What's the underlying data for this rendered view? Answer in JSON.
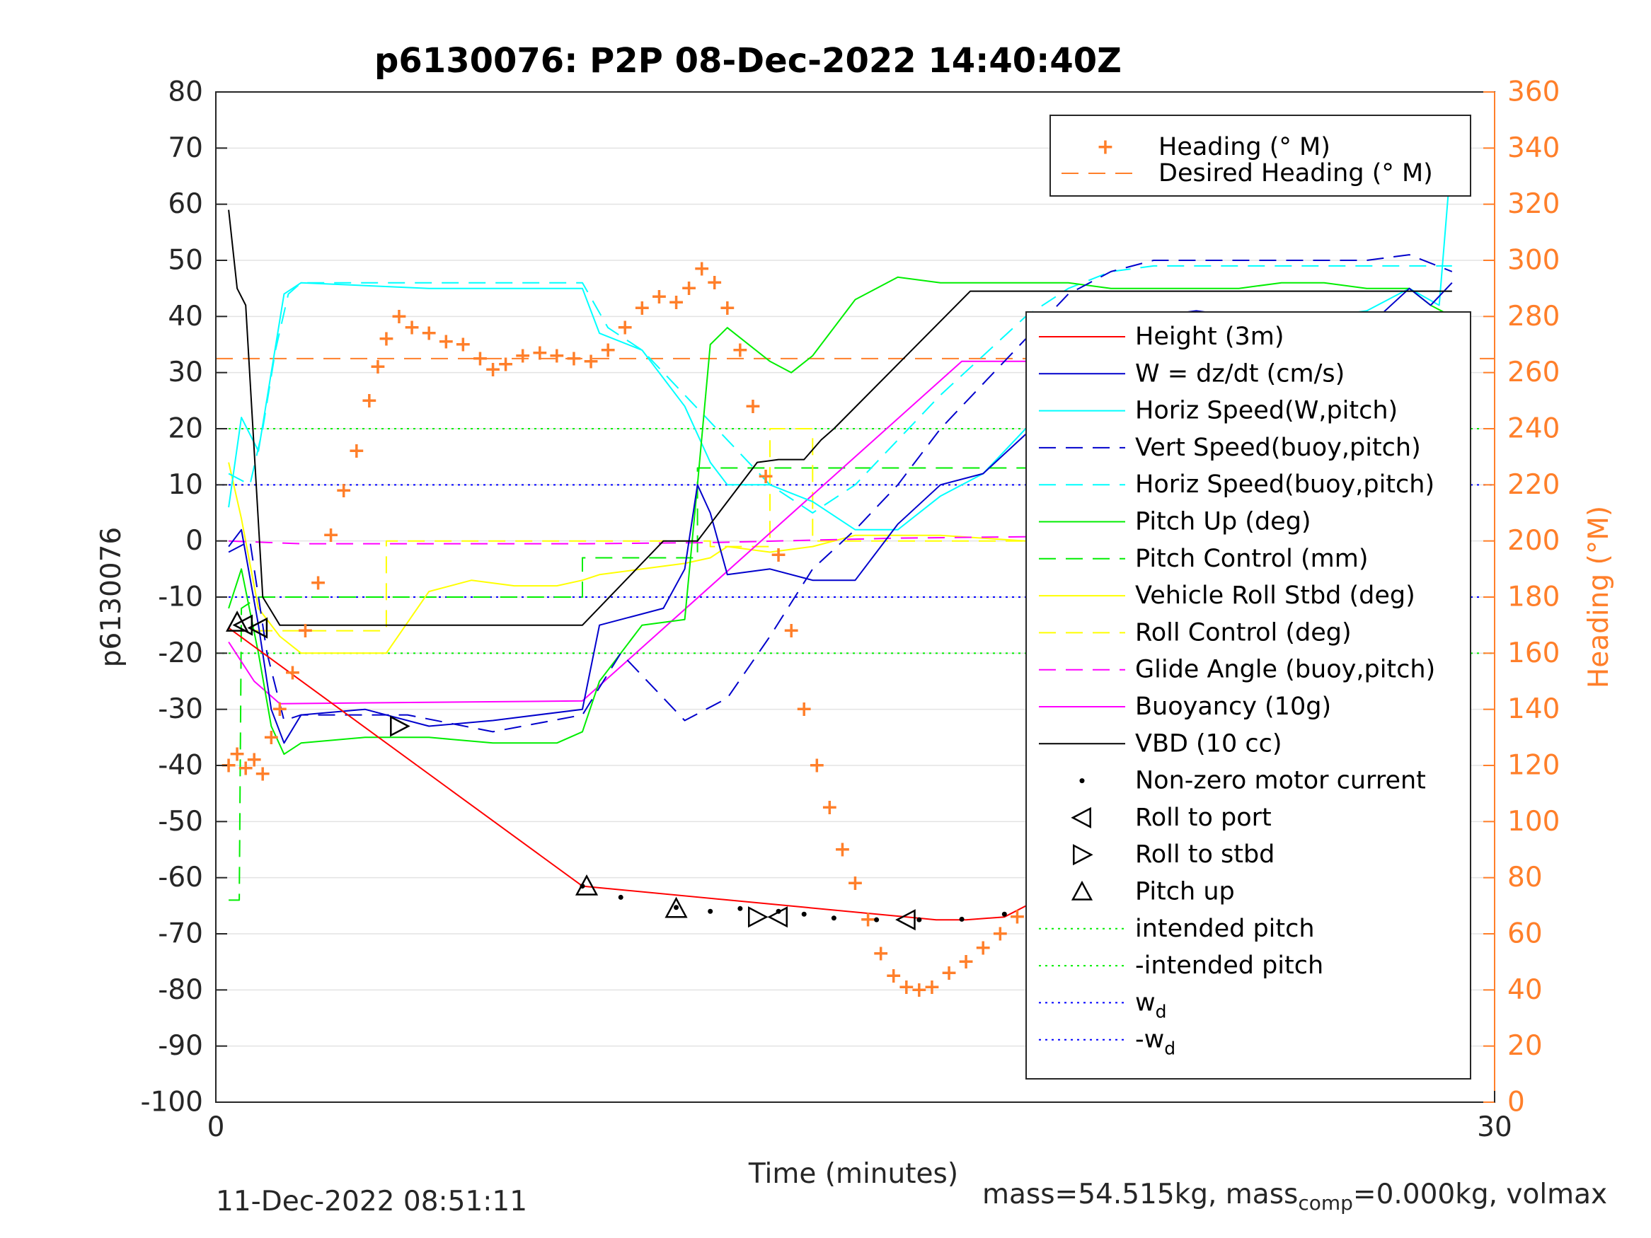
{
  "chart_data": {
    "type": "line",
    "title": "p6130076: P2P 08-Dec-2022 14:40:40Z",
    "xlabel": "Time (minutes)",
    "ylabel": "p6130076",
    "ylabel_right": "Heading (°M)",
    "xlim": [
      0,
      30
    ],
    "ylim": [
      -100,
      80
    ],
    "ylim_right": [
      0,
      360
    ],
    "x_ticks": [
      "0",
      "30"
    ],
    "y_ticks": [
      "80",
      "70",
      "60",
      "50",
      "40",
      "30",
      "20",
      "10",
      "0",
      "-10",
      "-20",
      "-30",
      "-40",
      "-50",
      "-60",
      "-70",
      "-80",
      "-90",
      "-100"
    ],
    "y_ticks_right": [
      "360",
      "340",
      "320",
      "300",
      "280",
      "260",
      "240",
      "220",
      "200",
      "180",
      "160",
      "140",
      "120",
      "100",
      "80",
      "60",
      "40",
      "20",
      "0"
    ],
    "grid": "horizontal",
    "colors": {
      "heading": "#ff7f2a",
      "height": "#ff0000",
      "w": "#0000cc",
      "horiz": "#00ffff",
      "pitch": "#00ee00",
      "roll": "#ffff00",
      "glide": "#ff00ff",
      "vbd": "#000000",
      "intended": "#00ee00",
      "wd": "#0000ff"
    },
    "legend_top": {
      "placement": "top-right",
      "entries": [
        "Heading (° M)",
        "Desired Heading (° M)"
      ]
    },
    "legend_main": {
      "placement": "right",
      "entries": [
        "Height (3m)",
        "W = dz/dt (cm/s)",
        "Horiz Speed(W,pitch)",
        "Vert Speed(buoy,pitch)",
        "Horiz Speed(buoy,pitch)",
        "Pitch Up (deg)",
        "Pitch Control (mm)",
        "Vehicle Roll Stbd (deg)",
        "Roll Control (deg)",
        "Glide Angle (buoy,pitch)",
        "Buoyancy (10g)",
        "VBD (10 cc)",
        "Non-zero motor current",
        "Roll to port",
        "Roll to stbd",
        "Pitch up",
        "intended pitch",
        "-intended pitch",
        "w",
        "-w"
      ],
      "subscript": "d"
    },
    "series": [
      {
        "name": "Height (3m)",
        "x": [
          0.3,
          8.6,
          16.9,
          17.6,
          18.5,
          23.6,
          26.6,
          29.0
        ],
        "y": [
          -15.5,
          -61.5,
          -67.5,
          -67.5,
          -67.0,
          -47.0,
          -26.0,
          -7.0
        ]
      },
      {
        "name": "Non-zero motor current",
        "x": [
          8.6,
          9.5,
          10.8,
          11.6,
          12.3,
          13.2,
          13.8,
          14.5,
          15.5,
          16.5,
          17.5,
          18.5,
          19.5,
          20.5,
          21.5,
          22.5,
          23.6
        ],
        "y": [
          -61.5,
          -63.5,
          -65.3,
          -66.0,
          -65.5,
          -66.0,
          -66.5,
          -67.2,
          -67.5,
          -67.5,
          -67.4,
          -66.5,
          -64.5,
          -61.5,
          -57.5,
          -53.0,
          -47.8
        ]
      },
      {
        "name": "W = dz/dt (cm/s)",
        "x": [
          0.3,
          0.6,
          1.0,
          1.3,
          1.6,
          2.0,
          3.5,
          5.0,
          6.5,
          8.6,
          9.0,
          10.5,
          11.0,
          11.3,
          11.6,
          12.0,
          13.0,
          14.0,
          15.0,
          16.0,
          17.0,
          18.0,
          19.0,
          20.0,
          21.0,
          22.0,
          23.0,
          24.0,
          25.0,
          26.0,
          27.0,
          28.0,
          28.5,
          29.0
        ],
        "y": [
          -1.0,
          2.0,
          -15.0,
          -30.0,
          -36.0,
          -31.0,
          -30.0,
          -33.0,
          -32.0,
          -30.0,
          -15.0,
          -12.0,
          -5.0,
          10.0,
          5.0,
          -6.0,
          -5.0,
          -7.0,
          -7.0,
          3.0,
          10.0,
          12.0,
          19.0,
          30.0,
          37.0,
          40.0,
          41.0,
          40.0,
          40.0,
          40.0,
          38.0,
          45.0,
          42.0,
          46.0
        ]
      },
      {
        "name": "Horiz Speed(W,pitch)",
        "x": [
          0.3,
          0.6,
          1.0,
          1.3,
          1.6,
          2.0,
          5.0,
          8.6,
          9.0,
          10.0,
          11.0,
          11.6,
          12.0,
          13.0,
          14.0,
          15.0,
          16.0,
          17.0,
          18.0,
          19.0,
          20.0,
          21.0,
          22.0,
          23.0,
          24.0,
          25.0,
          26.0,
          27.0,
          28.0,
          28.7,
          29.0
        ],
        "y": [
          6.0,
          22.0,
          16.0,
          30.0,
          44.0,
          46.0,
          45.0,
          45.0,
          37.0,
          34.0,
          24.0,
          14.0,
          10.0,
          10.0,
          7.0,
          2.0,
          2.0,
          8.0,
          12.0,
          20.0,
          30.0,
          37.0,
          40.0,
          40.0,
          40.0,
          38.0,
          40.0,
          41.0,
          45.0,
          42.0,
          70.0
        ]
      },
      {
        "name": "Vert Speed(buoy,pitch)",
        "x": [
          0.3,
          0.8,
          1.2,
          1.6,
          2.0,
          4.5,
          6.5,
          8.6,
          9.5,
          11.0,
          12.0,
          13.0,
          14.0,
          15.0,
          16.0,
          17.0,
          18.0,
          19.0,
          20.0,
          21.0,
          22.0,
          23.0,
          24.0,
          25.0,
          26.0,
          27.0,
          28.0,
          29.0
        ],
        "y": [
          -2.0,
          0.0,
          -20.0,
          -32.0,
          -31.0,
          -31.0,
          -34.0,
          -31.0,
          -20.0,
          -32.0,
          -28.0,
          -17.0,
          -5.0,
          2.0,
          10.0,
          20.0,
          28.0,
          36.0,
          44.0,
          48.0,
          50.0,
          50.0,
          50.0,
          50.0,
          50.0,
          50.0,
          51.0,
          48.0
        ]
      },
      {
        "name": "Horiz Speed(buoy,pitch)",
        "x": [
          0.3,
          0.8,
          1.1,
          1.4,
          1.7,
          2.0,
          5.0,
          8.6,
          9.2,
          10.0,
          11.0,
          12.0,
          13.0,
          14.0,
          15.0,
          16.0,
          17.0,
          18.0,
          19.0,
          20.0,
          21.0,
          22.0,
          23.0,
          24.0,
          25.0,
          26.0,
          27.0,
          28.0,
          29.0
        ],
        "y": [
          12.0,
          10.0,
          20.0,
          34.0,
          44.0,
          46.0,
          46.0,
          46.0,
          38.0,
          34.0,
          26.0,
          18.0,
          10.0,
          5.0,
          10.0,
          18.0,
          26.0,
          33.0,
          40.0,
          45.0,
          48.0,
          49.0,
          49.0,
          49.0,
          49.0,
          49.0,
          49.0,
          49.0,
          49.0
        ]
      },
      {
        "name": "Pitch Up (deg)",
        "x": [
          0.3,
          0.6,
          1.0,
          1.3,
          1.6,
          2.0,
          3.5,
          5.0,
          6.5,
          8.0,
          8.6,
          9.0,
          10.0,
          11.0,
          11.3,
          11.6,
          12.0,
          13.0,
          13.5,
          14.0,
          15.0,
          16.0,
          17.0,
          18.0,
          19.0,
          20.0,
          21.0,
          22.0,
          23.0,
          24.0,
          25.0,
          26.0,
          27.0,
          28.0,
          28.5,
          29.0
        ],
        "y": [
          -12.0,
          -5.0,
          -20.0,
          -33.0,
          -38.0,
          -36.0,
          -35.0,
          -35.0,
          -36.0,
          -36.0,
          -34.0,
          -25.0,
          -15.0,
          -14.0,
          10.0,
          35.0,
          38.0,
          32.0,
          30.0,
          33.0,
          43.0,
          47.0,
          46.0,
          46.0,
          46.0,
          46.0,
          45.0,
          45.0,
          45.0,
          45.0,
          46.0,
          46.0,
          45.0,
          45.0,
          42.0,
          40.0
        ]
      },
      {
        "name": "Pitch Control (mm)",
        "x": [
          0.3,
          0.55,
          0.6,
          1.0,
          1.5,
          8.6,
          8.6,
          11.3,
          11.3,
          28.6
        ],
        "y": [
          -64.0,
          -64.0,
          -12.0,
          -10.0,
          -10.0,
          -10.0,
          -3.0,
          -3.0,
          13.0,
          13.0
        ]
      },
      {
        "name": "Vehicle Roll Stbd (deg)",
        "x": [
          0.3,
          0.6,
          1.0,
          1.5,
          2.0,
          3.0,
          4.0,
          5.0,
          6.0,
          7.0,
          8.0,
          8.6,
          9.0,
          10.0,
          11.0,
          11.6,
          12.0,
          13.0,
          14.0,
          15.0,
          16.0,
          17.0,
          18.0,
          19.0,
          20.0,
          21.0,
          22.0,
          23.0,
          24.0,
          25.0,
          26.0,
          27.0,
          28.0,
          28.5,
          29.0
        ],
        "y": [
          14.0,
          4.0,
          -12.0,
          -17.0,
          -20.0,
          -20.0,
          -20.0,
          -9.0,
          -7.0,
          -8.0,
          -8.0,
          -7.0,
          -6.0,
          -5.0,
          -4.0,
          -3.0,
          -1.0,
          -2.0,
          -1.0,
          1.0,
          1.0,
          1.0,
          0.5,
          0.0,
          0.0,
          0.0,
          0.0,
          0.5,
          -3.0,
          -4.0,
          -7.0,
          -5.0,
          2.0,
          12.0,
          20.0
        ]
      },
      {
        "name": "Roll Control (deg)",
        "x": [
          0.3,
          4.0,
          4.0,
          11.6,
          11.6,
          13.0,
          13.0,
          14.0,
          14.0,
          28.5,
          28.5,
          29.0
        ],
        "y": [
          -16.0,
          -16.0,
          0.0,
          0.0,
          -1.0,
          -1.0,
          20.0,
          20.0,
          0.0,
          0.0,
          20.0,
          20.0
        ]
      },
      {
        "name": "Glide Angle (buoy,pitch)",
        "x": [
          0.3,
          2.0,
          8.6,
          11.6,
          16.0,
          22.0,
          29.0
        ],
        "y": [
          0.0,
          -0.5,
          -0.5,
          -0.3,
          0.5,
          1.0,
          1.0
        ]
      },
      {
        "name": "Buoyancy (10g)",
        "x": [
          0.3,
          0.9,
          1.5,
          8.6,
          17.5,
          29.0
        ],
        "y": [
          -18.0,
          -25.0,
          -29.0,
          -28.5,
          32.0,
          32.0
        ]
      },
      {
        "name": "VBD (10 cc)",
        "x": [
          0.3,
          0.5,
          0.7,
          1.1,
          1.5,
          8.6,
          10.5,
          11.3,
          12.7,
          13.2,
          13.8,
          14.2,
          14.5,
          17.7,
          29.0
        ],
        "y": [
          59.0,
          45.0,
          42.0,
          -10.0,
          -15.0,
          -15.0,
          0.0,
          0.0,
          14.0,
          14.5,
          14.5,
          18.0,
          20.0,
          44.5,
          44.5
        ]
      },
      {
        "name": "Heading (° M)",
        "x": [
          0.3,
          0.5,
          0.7,
          0.9,
          1.1,
          1.3,
          1.5,
          1.8,
          2.1,
          2.4,
          2.7,
          3.0,
          3.3,
          3.6,
          3.8,
          4.0,
          4.3,
          4.6,
          5.0,
          5.4,
          5.8,
          6.2,
          6.5,
          6.8,
          7.2,
          7.6,
          8.0,
          8.4,
          8.8,
          9.2,
          9.6,
          10.0,
          10.4,
          10.8,
          11.1,
          11.4,
          11.7,
          12.0,
          12.3,
          12.6,
          12.9,
          13.2,
          13.5,
          13.8,
          14.1,
          14.4,
          14.7,
          15.0,
          15.3,
          15.6,
          15.9,
          16.2,
          16.5,
          16.8,
          17.2,
          17.6,
          18.0,
          18.4,
          18.8,
          19.2,
          19.6,
          20.0,
          20.4,
          20.8,
          21.2,
          21.6,
          22.0,
          22.5,
          23.0,
          23.5,
          24.0,
          24.5,
          25.0,
          25.5,
          26.0,
          26.5,
          27.0,
          27.5,
          28.0,
          28.3,
          28.6,
          28.9,
          29.0
        ],
        "y": [
          120.0,
          124.0,
          119.0,
          122.0,
          117.0,
          130.0,
          140.0,
          153.0,
          168.0,
          185.0,
          202.0,
          218.0,
          232.0,
          250.0,
          262.0,
          272.0,
          280.0,
          276.0,
          274.0,
          271.0,
          270.0,
          265.0,
          261.0,
          263.0,
          266.0,
          267.0,
          266.0,
          265.0,
          264.0,
          268.0,
          276.0,
          283.0,
          287.0,
          285.0,
          290.0,
          297.0,
          292.0,
          283.0,
          268.0,
          248.0,
          223.0,
          195.0,
          168.0,
          140.0,
          120.0,
          105.0,
          90.0,
          78.0,
          65.0,
          53.0,
          45.0,
          41.0,
          40.0,
          41.0,
          46.0,
          50.0,
          55.0,
          60.0,
          66.0,
          72.0,
          78.0,
          82.0,
          88.0,
          90.0,
          88.0,
          91.0,
          93.0,
          90.0,
          85.0,
          82.0,
          78.0,
          80.0,
          82.0,
          88.0,
          100.0,
          120.0,
          145.0,
          165.0,
          185.0,
          200.0,
          205.0,
          210.0,
          212.0
        ]
      },
      {
        "name": "Desired Heading (° M)",
        "x": [
          0,
          30
        ],
        "y": [
          265.0,
          265.0
        ]
      },
      {
        "name": "intended pitch",
        "x": [
          0,
          30
        ],
        "y": [
          20.0,
          20.0
        ]
      },
      {
        "name": "-intended pitch",
        "x": [
          0,
          30
        ],
        "y": [
          -20.0,
          -20.0
        ]
      },
      {
        "name": "w_d",
        "x": [
          0,
          30
        ],
        "y": [
          10.0,
          10.0
        ]
      },
      {
        "name": "-w_d",
        "x": [
          0,
          30
        ],
        "y": [
          -10.0,
          -10.0
        ]
      }
    ],
    "markers": {
      "roll_to_port": {
        "x": [
          0.65,
          1.0,
          13.2,
          16.2,
          20.4
        ],
        "y": [
          -15.0,
          -15.5,
          -67.0,
          -67.5,
          -28.5
        ]
      },
      "roll_to_stbd": {
        "x": [
          4.3,
          12.7,
          20.1,
          24.8
        ],
        "y": [
          -33.0,
          -67.0,
          -30.0,
          -10.0
        ]
      },
      "pitch_up": {
        "x": [
          0.5,
          8.7,
          10.8
        ],
        "y": [
          -14.5,
          -61.5,
          -65.5
        ]
      }
    }
  },
  "footer": {
    "timestamp": "11-Dec-2022 08:51:11",
    "mass_text": "mass=54.515kg, mass",
    "mass_sub": "comp",
    "mass_tail": "=0.000kg, volmax"
  }
}
